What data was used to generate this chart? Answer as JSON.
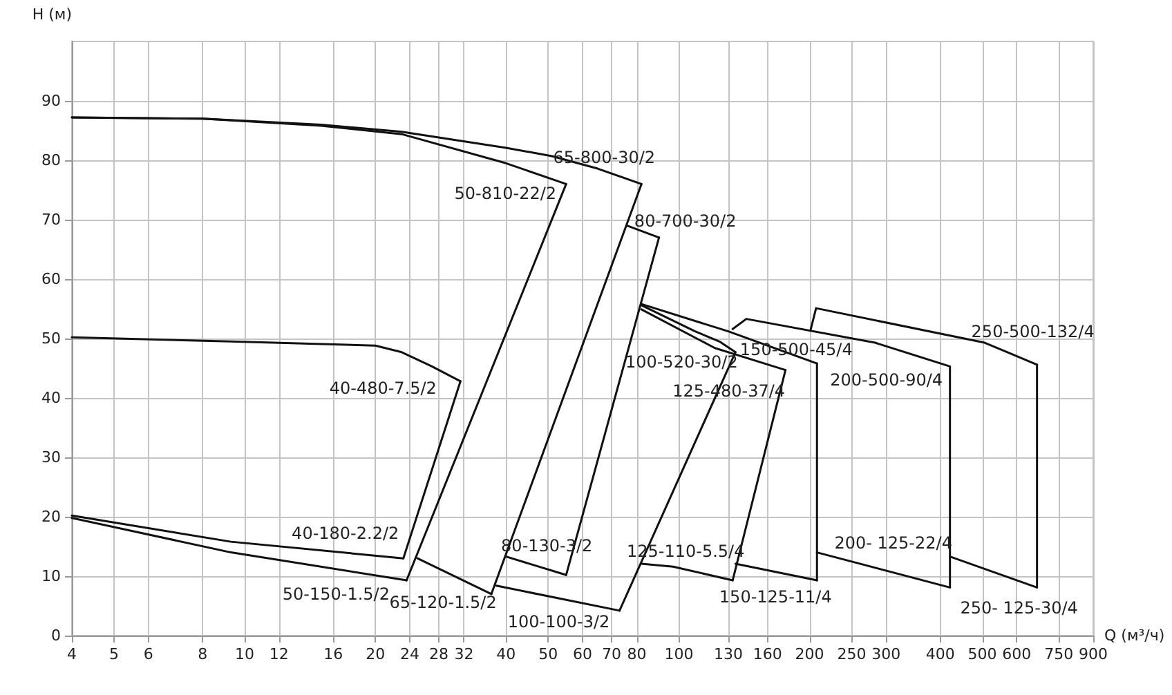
{
  "chart_data": {
    "type": "line",
    "xlabel": "Q (м³/ч)",
    "ylabel": "H (м)",
    "log": "x",
    "grid": true,
    "marker": "none",
    "line_style": "solid",
    "xlim": [
      4,
      900
    ],
    "xticks": [
      4,
      5,
      6,
      8,
      10,
      12,
      16,
      20,
      24,
      28,
      32,
      40,
      50,
      60,
      70,
      80,
      100,
      130,
      160,
      200,
      250,
      300,
      400,
      500,
      600,
      750,
      900
    ],
    "ylim": [
      0,
      100
    ],
    "yticks": [
      0,
      10,
      20,
      30,
      40,
      50,
      60,
      70,
      80,
      90
    ],
    "series": [
      {
        "name": "40-480-7.5/2",
        "color": "#111111",
        "x": [
          4,
          9.3,
          20,
          23,
          27,
          31.4
        ],
        "values": [
          50.2,
          49.5,
          48.8,
          47.7,
          45.3,
          42.8
        ]
      },
      {
        "name": "40-180-2.2/2",
        "color": "#111111",
        "x": [
          4,
          9.3,
          23.2
        ],
        "values": [
          20.2,
          15.8,
          13
        ]
      },
      {
        "name": "50-810-22/2",
        "color": "#111111",
        "x": [
          4,
          8,
          15,
          23,
          40,
          55
        ],
        "values": [
          87.2,
          87,
          85.8,
          84.4,
          79.5,
          76
        ]
      },
      {
        "name": "50-150-1.5/2",
        "color": "#111111",
        "x": [
          4,
          9.3,
          23.6
        ],
        "values": [
          19.8,
          14,
          9.3
        ]
      },
      {
        "name": "65-800-30/2",
        "color": "#111111",
        "x": [
          4,
          8,
          15,
          23,
          40,
          51,
          65,
          82
        ],
        "values": [
          87.2,
          87,
          86,
          84.8,
          82.1,
          80.7,
          78.6,
          76
        ]
      },
      {
        "name": "65-120-1.5/2",
        "color": "#111111",
        "x": [
          25,
          37
        ],
        "values": [
          13,
          7
        ]
      },
      {
        "name": "80-700-30/2",
        "color": "#111111",
        "x": [
          76,
          90
        ],
        "values": [
          69,
          67
        ]
      },
      {
        "name": "80-130-3/2",
        "color": "#111111",
        "x": [
          40,
          55
        ],
        "values": [
          13.3,
          10.2
        ]
      },
      {
        "name": "100-520-30/2",
        "color": "#111111",
        "x": [
          82,
          109,
          124,
          135
        ],
        "values": [
          55.6,
          51.2,
          49.5,
          47.7
        ]
      },
      {
        "name": "100-100-3/2",
        "color": "#111111",
        "x": [
          38,
          73
        ],
        "values": [
          8.4,
          4.2
        ]
      },
      {
        "name": "125-480-37/4",
        "color": "#111111",
        "x": [
          82,
          121,
          176
        ],
        "values": [
          54.9,
          48.4,
          44.7
        ]
      },
      {
        "name": "150-500-45/4",
        "color": "#111111",
        "x": [
          82,
          130,
          208
        ],
        "values": [
          55.8,
          51.2,
          45.8
        ]
      },
      {
        "name": "200-500-90/4",
        "color": "#111111",
        "x": [
          133,
          143,
          283,
          421
        ],
        "values": [
          51.6,
          53.3,
          49.3,
          45.3
        ]
      },
      {
        "name": "125-110-5.5/4",
        "color": "#111111",
        "x": [
          82,
          97,
          133
        ],
        "values": [
          12.1,
          11.6,
          9.3
        ]
      },
      {
        "name": "150-125-11/4",
        "color": "#111111",
        "x": [
          135,
          208
        ],
        "values": [
          12.1,
          9.3
        ]
      },
      {
        "name": "200- 125-22/4",
        "color": "#111111",
        "x": [
          208,
          421
        ],
        "values": [
          14,
          8.1
        ]
      },
      {
        "name": "250-500-132/4",
        "color": "#111111",
        "x": [
          201,
          207,
          506,
          668
        ],
        "values": [
          51.4,
          55.1,
          49.3,
          45.6
        ]
      },
      {
        "name": "250- 125-30/4",
        "color": "#111111",
        "x": [
          421,
          668
        ],
        "values": [
          13.3,
          8.1
        ]
      },
      {
        "color": "#111111",
        "x": [
          23.2,
          31.4
        ],
        "values": [
          13,
          42.8
        ]
      },
      {
        "color": "#111111",
        "x": [
          23.6,
          55
        ],
        "values": [
          9.3,
          76
        ]
      },
      {
        "color": "#111111",
        "x": [
          37,
          82
        ],
        "values": [
          7,
          76
        ]
      },
      {
        "color": "#111111",
        "x": [
          55,
          90
        ],
        "values": [
          10.2,
          67
        ]
      },
      {
        "color": "#111111",
        "x": [
          73,
          135
        ],
        "values": [
          4.2,
          47.7
        ]
      },
      {
        "color": "#111111",
        "x": [
          133,
          176
        ],
        "values": [
          9.3,
          44.7
        ]
      },
      {
        "color": "#111111",
        "x": [
          208,
          208
        ],
        "values": [
          9.3,
          45.8
        ]
      },
      {
        "color": "#111111",
        "x": [
          421,
          421
        ],
        "values": [
          8.1,
          45.3
        ]
      },
      {
        "color": "#111111",
        "x": [
          668,
          668
        ],
        "values": [
          8.1,
          45.6
        ]
      }
    ]
  }
}
